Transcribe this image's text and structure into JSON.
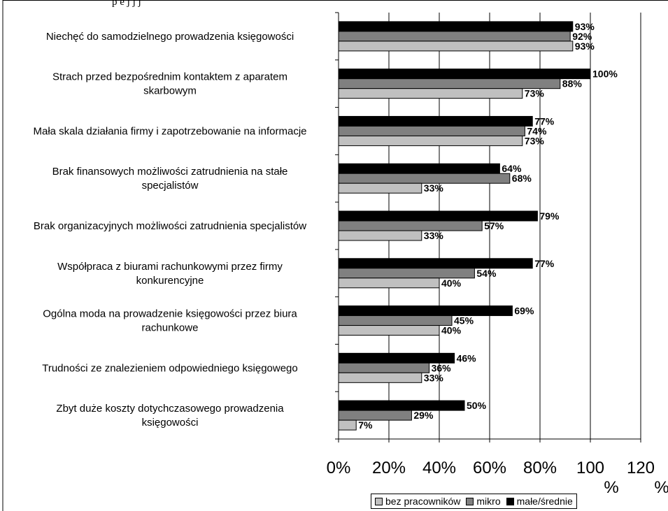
{
  "header_fragment": "p    e            j j    j",
  "chart_data": {
    "type": "bar",
    "orientation": "horizontal",
    "categories": [
      [
        "Niechęć do samodzielnego prowadzenia księgowości"
      ],
      [
        "Strach przed bezpośrednim kontaktem z aparatem",
        "skarbowym"
      ],
      [
        "Mała skala działania firmy i zapotrzebowanie na informacje"
      ],
      [
        "Brak finansowych możliwości zatrudnienia na stałe",
        "specjalistów"
      ],
      [
        "Brak organizacyjnych możliwości zatrudnienia specjalistów"
      ],
      [
        "Współpraca z biurami rachunkowymi przez firmy",
        "konkurencyjne"
      ],
      [
        "Ogólna moda na prowadzenie księgowości przez biura",
        "rachunkowe"
      ],
      [
        "Trudności ze znalezieniem odpowiedniego księgowego"
      ],
      [
        "Zbyt duże koszty dotychczasowego prowadzenia",
        "księgowości"
      ]
    ],
    "series": [
      {
        "name": "małe/średnie",
        "color": "#000000",
        "values": [
          93,
          100,
          77,
          64,
          79,
          77,
          69,
          46,
          50
        ]
      },
      {
        "name": "mikro",
        "color": "#808080",
        "values": [
          92,
          88,
          74,
          68,
          57,
          54,
          45,
          36,
          29
        ]
      },
      {
        "name": "bez pracowników",
        "color": "#c0c0c0",
        "values": [
          93,
          73,
          73,
          33,
          33,
          40,
          40,
          33,
          7
        ]
      }
    ],
    "value_labels": [
      [
        "93%",
        "92%",
        "93%"
      ],
      [
        "100%",
        "88%",
        "73%"
      ],
      [
        "77%",
        "74%",
        "73%"
      ],
      [
        "64%",
        "68%",
        "33%"
      ],
      [
        "79%",
        "57%",
        "33%"
      ],
      [
        "77%",
        "54%",
        "40%"
      ],
      [
        "69%",
        "45%",
        "40%"
      ],
      [
        "46%",
        "36%",
        "33%"
      ],
      [
        "50%",
        "29%",
        "7%"
      ]
    ],
    "x_ticks": [
      {
        "value": 0,
        "label": [
          "0%"
        ]
      },
      {
        "value": 20,
        "label": [
          "20%"
        ]
      },
      {
        "value": 40,
        "label": [
          "40%"
        ]
      },
      {
        "value": 60,
        "label": [
          "60%"
        ]
      },
      {
        "value": 80,
        "label": [
          "80%"
        ]
      },
      {
        "value": 100,
        "label": [
          "100",
          "%"
        ]
      },
      {
        "value": 120,
        "label": [
          "120",
          "%"
        ]
      }
    ],
    "xlim": [
      0,
      120
    ],
    "grid": "vertical",
    "legend": {
      "position": "bottom-right",
      "items": [
        {
          "label": "bez pracowników",
          "color": "#c0c0c0"
        },
        {
          "label": "mikro",
          "color": "#808080"
        },
        {
          "label": "małe/średnie",
          "color": "#000000"
        }
      ]
    }
  }
}
